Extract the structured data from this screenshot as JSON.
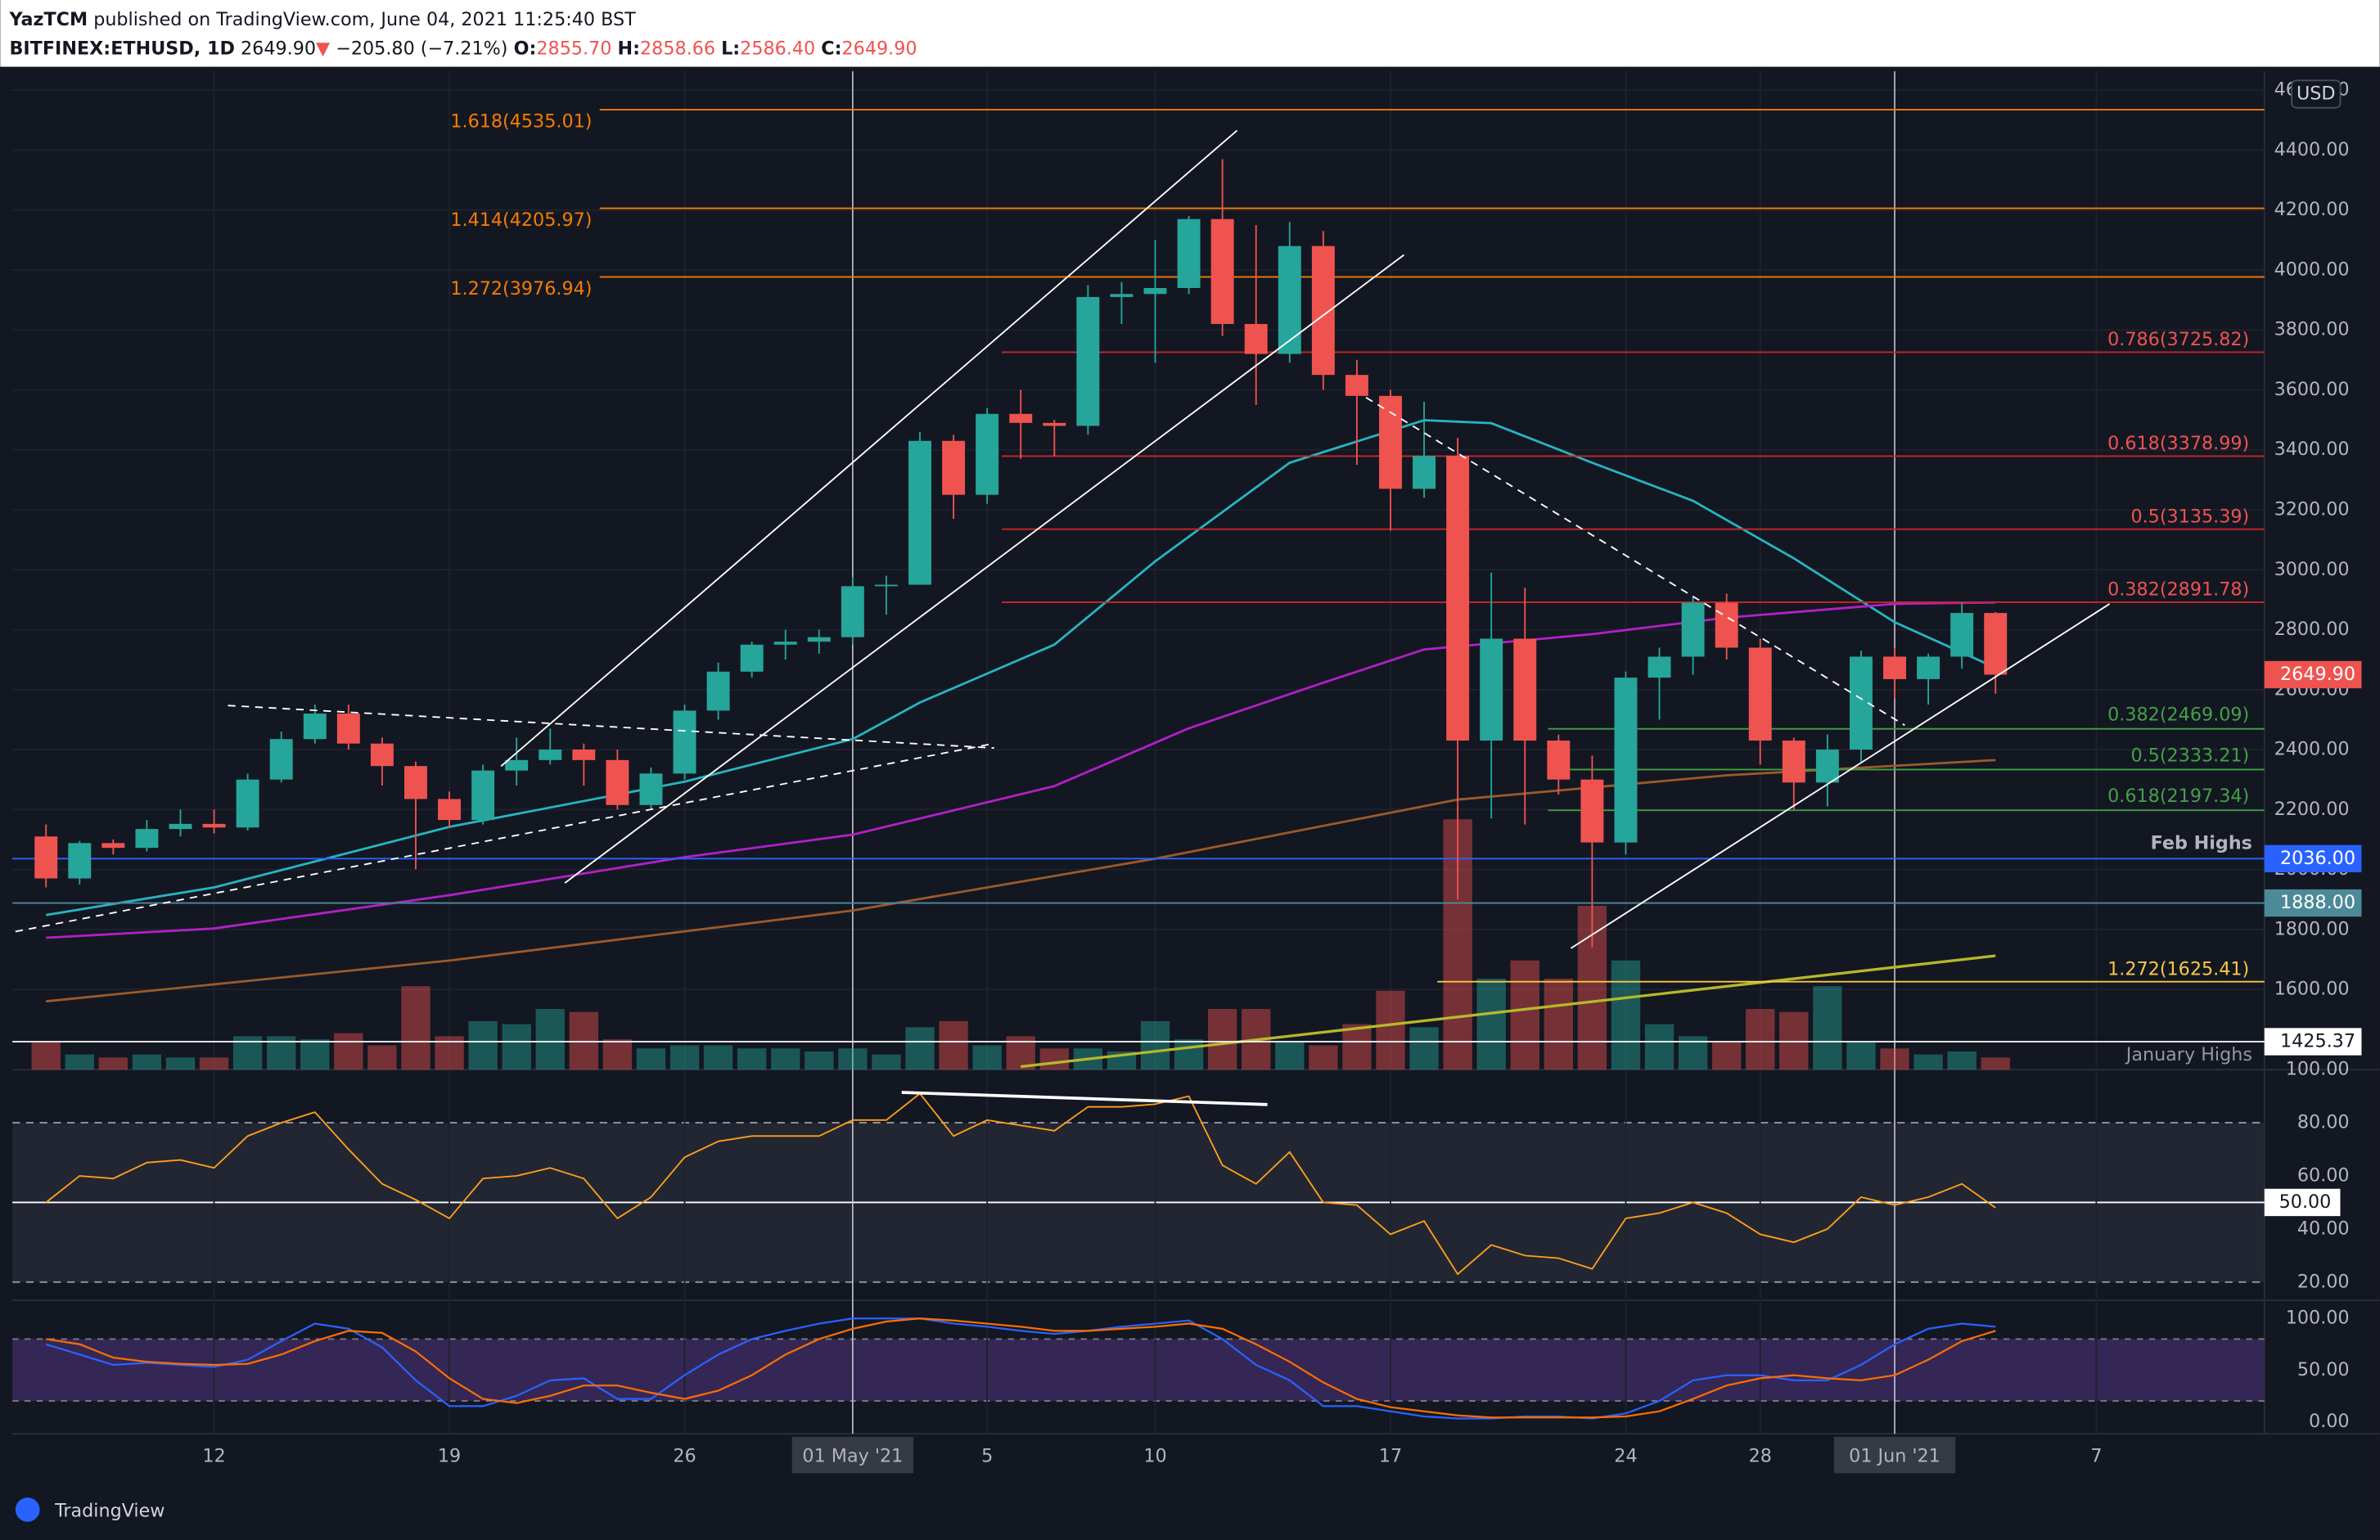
{
  "header": {
    "author": "YazTCM",
    "published": "published on TradingView.com, June 04, 2021 11:25:40 BST",
    "symbol": "BITFINEX:ETHUSD, 1D",
    "price": "2649.90",
    "arrow": "▼",
    "change": "−205.80 (−7.21%)",
    "ohlc": [
      {
        "key": "O:",
        "value": "2855.70"
      },
      {
        "key": "H:",
        "value": "2858.66"
      },
      {
        "key": "L:",
        "value": "2586.40"
      },
      {
        "key": "C:",
        "value": "2649.90"
      }
    ]
  },
  "footer": {
    "brand": "TradingView"
  },
  "chart_data": {
    "type": "candlestick",
    "x": [
      "2021-04-07",
      "2021-04-08",
      "2021-04-09",
      "2021-04-10",
      "2021-04-11",
      "2021-04-12",
      "2021-04-13",
      "2021-04-14",
      "2021-04-15",
      "2021-04-16",
      "2021-04-17",
      "2021-04-18",
      "2021-04-19",
      "2021-04-20",
      "2021-04-21",
      "2021-04-22",
      "2021-04-23",
      "2021-04-24",
      "2021-04-25",
      "2021-04-26",
      "2021-04-27",
      "2021-04-28",
      "2021-04-29",
      "2021-04-30",
      "2021-05-01",
      "2021-05-02",
      "2021-05-03",
      "2021-05-04",
      "2021-05-05",
      "2021-05-06",
      "2021-05-07",
      "2021-05-08",
      "2021-05-09",
      "2021-05-10",
      "2021-05-11",
      "2021-05-12",
      "2021-05-13",
      "2021-05-14",
      "2021-05-15",
      "2021-05-16",
      "2021-05-17",
      "2021-05-18",
      "2021-05-19",
      "2021-05-20",
      "2021-05-21",
      "2021-05-22",
      "2021-05-23",
      "2021-05-24",
      "2021-05-25",
      "2021-05-26",
      "2021-05-27",
      "2021-05-28",
      "2021-05-29",
      "2021-05-30",
      "2021-05-31",
      "2021-06-01",
      "2021-06-02",
      "2021-06-03",
      "2021-06-04"
    ],
    "open": [
      2110,
      1970,
      2088,
      2072,
      2135,
      2152,
      2140,
      2300,
      2435,
      2520,
      2420,
      2345,
      2235,
      2165,
      2330,
      2365,
      2400,
      2365,
      2215,
      2320,
      2530,
      2660,
      2750,
      2760,
      2775,
      2945,
      2950,
      3430,
      3250,
      3520,
      3490,
      3480,
      3910,
      3920,
      3940,
      4170,
      3820,
      3720,
      4080,
      3650,
      3580,
      3270,
      3380,
      2430,
      2770,
      2430,
      2300,
      2090,
      2640,
      2710,
      2890,
      2740,
      2430,
      2290,
      2400,
      2710,
      2635,
      2710,
      2855.7
    ],
    "high": [
      2150,
      2095,
      2100,
      2165,
      2200,
      2200,
      2320,
      2460,
      2550,
      2550,
      2440,
      2360,
      2260,
      2350,
      2440,
      2470,
      2420,
      2400,
      2340,
      2550,
      2690,
      2760,
      2800,
      2800,
      2975,
      2980,
      3460,
      3450,
      3540,
      3600,
      3500,
      3950,
      3960,
      4100,
      4180,
      4370,
      4150,
      4160,
      4130,
      3700,
      3600,
      3560,
      3440,
      2990,
      2940,
      2450,
      2380,
      2660,
      2740,
      2910,
      2920,
      2770,
      2440,
      2450,
      2730,
      2740,
      2720,
      2890,
      2858.66
    ],
    "low": [
      1940,
      1950,
      2050,
      2060,
      2110,
      2120,
      2130,
      2290,
      2420,
      2400,
      2280,
      2000,
      2140,
      2150,
      2280,
      2350,
      2280,
      2200,
      2200,
      2300,
      2500,
      2640,
      2700,
      2720,
      2750,
      2850,
      2950,
      3170,
      3220,
      3370,
      3380,
      3450,
      3820,
      3690,
      3920,
      3780,
      3550,
      3690,
      3600,
      3350,
      3130,
      3240,
      1900,
      2170,
      2150,
      2250,
      1740,
      2050,
      2500,
      2650,
      2700,
      2350,
      2200,
      2210,
      2360,
      2570,
      2550,
      2670,
      2586.4
    ],
    "close": [
      1970,
      2088,
      2072,
      2135,
      2152,
      2140,
      2300,
      2435,
      2520,
      2420,
      2345,
      2235,
      2165,
      2330,
      2365,
      2400,
      2365,
      2215,
      2320,
      2530,
      2660,
      2750,
      2760,
      2775,
      2945,
      2950,
      3430,
      3250,
      3520,
      3490,
      3480,
      3910,
      3920,
      3940,
      4170,
      3820,
      3720,
      4080,
      3650,
      3580,
      3270,
      3380,
      2430,
      2770,
      2430,
      2300,
      2090,
      2640,
      2710,
      2890,
      2740,
      2430,
      2290,
      2400,
      2710,
      2635,
      2710,
      2855.7,
      2649.9
    ],
    "volume": [
      18,
      10,
      8,
      10,
      8,
      8,
      22,
      22,
      20,
      24,
      16,
      55,
      22,
      32,
      30,
      40,
      38,
      20,
      14,
      16,
      16,
      14,
      14,
      12,
      14,
      10,
      28,
      32,
      16,
      22,
      14,
      14,
      12,
      32,
      20,
      40,
      40,
      18,
      16,
      30,
      52,
      28,
      165,
      60,
      72,
      60,
      108,
      72,
      30,
      22,
      18,
      40,
      38,
      55,
      18,
      14,
      10,
      12,
      8
    ],
    "up_color": "#26a69a",
    "down_color": "#ef5350",
    "xlim": [
      "2021-04-06",
      "2021-06-12"
    ],
    "xticks": [
      {
        "value": "2021-04-12",
        "label": "12"
      },
      {
        "value": "2021-04-19",
        "label": "19"
      },
      {
        "value": "2021-04-26",
        "label": "26"
      },
      {
        "value": "2021-05-01",
        "label": "01 May '21"
      },
      {
        "value": "2021-05-05",
        "label": "5"
      },
      {
        "value": "2021-05-10",
        "label": "10"
      },
      {
        "value": "2021-05-17",
        "label": "17"
      },
      {
        "value": "2021-05-24",
        "label": "24"
      },
      {
        "value": "2021-05-28",
        "label": "28"
      },
      {
        "value": "2021-06-01",
        "label": "01 Jun '21"
      },
      {
        "value": "2021-06-07",
        "label": "7"
      }
    ],
    "ylim": [
      1332,
      4663
    ],
    "yticks": [
      {
        "value": 1600,
        "label": "1600.00"
      },
      {
        "value": 1800,
        "label": "1800.00"
      },
      {
        "value": 2000,
        "label": "2000.00"
      },
      {
        "value": 2200,
        "label": "2200.00"
      },
      {
        "value": 2400,
        "label": "2400.00"
      },
      {
        "value": 2600,
        "label": "2600.00"
      },
      {
        "value": 2800,
        "label": "2800.00"
      },
      {
        "value": 3000,
        "label": "3000.00"
      },
      {
        "value": 3200,
        "label": "3200.00"
      },
      {
        "value": 3400,
        "label": "3400.00"
      },
      {
        "value": 3600,
        "label": "3600.00"
      },
      {
        "value": 3800,
        "label": "3800.00"
      },
      {
        "value": 4000,
        "label": "4000.00"
      },
      {
        "value": 4200,
        "label": "4200.00"
      },
      {
        "value": 4400,
        "label": "4400.00"
      },
      {
        "value": 4600,
        "label": "4600.00"
      }
    ],
    "grid": true,
    "currency": "USD",
    "last_price_label": "2649.90",
    "moving_averages": [
      {
        "color": "#26b5c3",
        "x": [
          "2021-04-07",
          "2021-04-12",
          "2021-04-19",
          "2021-04-26",
          "2021-05-01",
          "2021-05-03",
          "2021-05-07",
          "2021-05-10",
          "2021-05-14",
          "2021-05-18",
          "2021-05-20",
          "2021-05-23",
          "2021-05-26",
          "2021-05-29",
          "2021-06-01",
          "2021-06-04"
        ],
        "values": [
          1848,
          1940,
          2142,
          2293,
          2435,
          2557,
          2750,
          3028,
          3357,
          3499,
          3489,
          3357,
          3230,
          3038,
          2825,
          2673
        ]
      },
      {
        "color": "#b41fc9",
        "x": [
          "2021-04-07",
          "2021-04-12",
          "2021-04-19",
          "2021-04-26",
          "2021-05-01",
          "2021-05-07",
          "2021-05-11",
          "2021-05-15",
          "2021-05-18",
          "2021-05-23",
          "2021-05-27",
          "2021-06-01",
          "2021-06-04"
        ],
        "values": [
          1772,
          1803,
          1914,
          2041,
          2116,
          2278,
          2471,
          2623,
          2734,
          2785,
          2840,
          2886,
          2891
        ]
      },
      {
        "color": "#9c5a2a",
        "x": [
          "2021-04-07",
          "2021-04-19",
          "2021-05-01",
          "2021-05-10",
          "2021-05-19",
          "2021-05-27",
          "2021-06-04"
        ],
        "values": [
          1560,
          1696,
          1863,
          2036,
          2233,
          2314,
          2365
        ]
      },
      {
        "color": "#b5b82a",
        "x": [
          "2021-05-06",
          "2021-06-04"
        ],
        "values": [
          1342,
          1712
        ]
      }
    ],
    "extension_levels": [
      {
        "label": "1.618(4535.01)",
        "value": 4535.01
      },
      {
        "label": "1.414(4205.97)",
        "value": 4205.97
      },
      {
        "label": "1.272(3976.94)",
        "value": 3976.94
      }
    ],
    "extension_color": "#f57c00",
    "retracement_levels": [
      {
        "label": "0.786(3725.82)",
        "value": 3725.82
      },
      {
        "label": "0.618(3378.99)",
        "value": 3378.99
      },
      {
        "label": "0.5(3135.39)",
        "value": 3135.39
      },
      {
        "label": "0.382(2891.78)",
        "value": 2891.78
      }
    ],
    "retracement_color": "#c62828",
    "support_levels": [
      {
        "label": "0.382(2469.09)",
        "value": 2469.09
      },
      {
        "label": "0.5(2333.21)",
        "value": 2333.21
      },
      {
        "label": "0.618(2197.34)",
        "value": 2197.34
      }
    ],
    "support_color": "#43a047",
    "target_levels": [
      {
        "label": "1.272(1625.41)",
        "value": 1625.41
      }
    ],
    "target_color": "#f9c846",
    "horizontal_lines": [
      {
        "label": "Feb Highs",
        "value": 2036,
        "value_label": "2036.00",
        "color": "#2962ff"
      },
      {
        "value": 1888,
        "value_label": "1888.00",
        "color": "#4d8a99"
      },
      {
        "label": "January Highs",
        "value": 1425.37,
        "value_label": "1425.37",
        "color": "#ffffff"
      }
    ],
    "rsi": {
      "color": "#ff9f1a",
      "values": [
        50,
        60,
        59,
        65,
        66,
        63,
        75,
        80,
        84,
        70,
        57,
        51,
        44,
        59,
        60,
        63,
        59,
        44,
        52,
        67,
        73,
        75,
        75,
        75,
        81,
        81,
        91,
        75,
        81,
        79,
        77,
        86,
        86,
        87,
        90,
        64,
        57,
        69,
        50,
        49,
        38,
        43,
        23,
        34,
        30,
        29,
        25,
        44,
        46,
        50,
        46,
        38,
        35,
        40,
        52,
        49,
        52,
        57,
        48
      ],
      "ylim": [
        14.3,
        100
      ],
      "yticks": [
        {
          "value": 20,
          "label": "20.00"
        },
        {
          "value": 40,
          "label": "40.00"
        },
        {
          "value": 60,
          "label": "60.00"
        },
        {
          "value": 80,
          "label": "80.00"
        },
        {
          "value": 100,
          "label": "100.00"
        }
      ],
      "band": [
        20,
        80
      ],
      "midline": {
        "value": 50,
        "label": "50.00"
      }
    },
    "stoch": {
      "ylim": [
        -11.8,
        113.2
      ],
      "yticks": [
        {
          "value": 0,
          "label": "0.00"
        },
        {
          "value": 50,
          "label": "50.00"
        },
        {
          "value": 100,
          "label": "100.00"
        }
      ],
      "band": [
        20,
        80
      ],
      "series": [
        {
          "color": "#2962ff",
          "values": [
            75,
            65,
            55,
            57,
            55,
            53,
            60,
            78,
            95,
            90,
            72,
            40,
            15,
            15,
            25,
            40,
            42,
            22,
            22,
            45,
            65,
            80,
            88,
            95,
            100,
            100,
            100,
            95,
            92,
            88,
            85,
            88,
            92,
            95,
            98,
            80,
            55,
            40,
            15,
            15,
            10,
            5,
            3,
            3,
            5,
            5,
            3,
            8,
            20,
            40,
            45,
            45,
            40,
            40,
            55,
            75,
            90,
            95,
            92
          ]
        },
        {
          "color": "#ff6d00",
          "values": [
            80,
            75,
            62,
            58,
            56,
            55,
            56,
            65,
            78,
            88,
            86,
            68,
            42,
            22,
            18,
            25,
            35,
            35,
            28,
            22,
            30,
            45,
            65,
            80,
            90,
            97,
            100,
            98,
            95,
            92,
            88,
            88,
            90,
            92,
            95,
            90,
            75,
            58,
            38,
            22,
            14,
            10,
            6,
            4,
            4,
            4,
            4,
            5,
            10,
            22,
            35,
            42,
            45,
            42,
            40,
            45,
            60,
            78,
            88
          ]
        }
      ]
    }
  }
}
